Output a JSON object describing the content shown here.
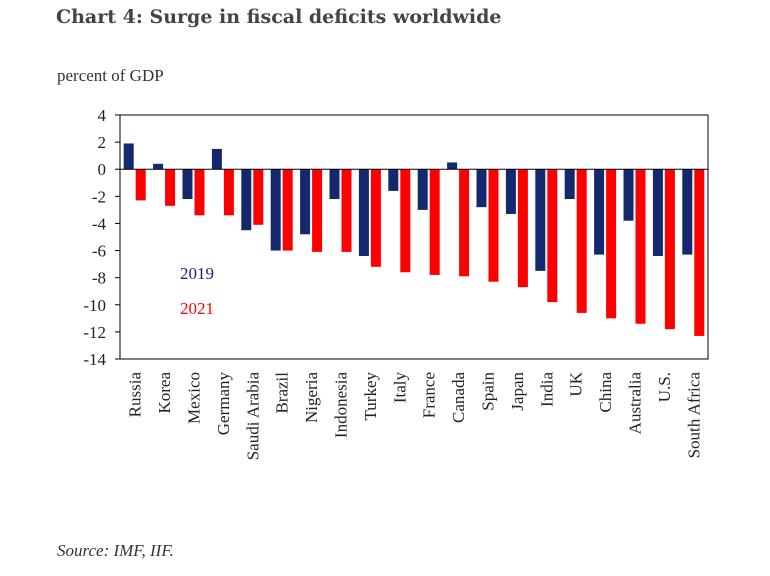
{
  "chart_title": "Chart 4:  Surge in fiscal deficits worldwide",
  "chart_data": {
    "type": "bar",
    "title": "Chart 4:  Surge in fiscal deficits worldwide",
    "ylabel": "percent of GDP",
    "ylim": [
      -14,
      4
    ],
    "yticks": [
      "4",
      "2",
      "0",
      "-2",
      "-4",
      "-6",
      "-8",
      "-10",
      "-12",
      "-14"
    ],
    "categories": [
      "Russia",
      "Korea",
      "Mexico",
      "Germany",
      "Saudi Arabia",
      "Brazil",
      "Nigeria",
      "Indonesia",
      "Turkey",
      "Italy",
      "France",
      "Canada",
      "Spain",
      "Japan",
      "India",
      "UK",
      "China",
      "Australia",
      "U.S.",
      "South Africa"
    ],
    "series": [
      {
        "name": "2019",
        "color": "#14286e",
        "values": [
          1.9,
          0.4,
          -2.2,
          1.5,
          -4.5,
          -6.0,
          -4.8,
          -2.2,
          -6.4,
          -1.6,
          -3.0,
          0.5,
          -2.8,
          -3.3,
          -7.5,
          -2.2,
          -6.3,
          -3.8,
          -6.4,
          -6.3
        ]
      },
      {
        "name": "2021",
        "color": "#ff0000",
        "values": [
          -2.3,
          -2.7,
          -3.4,
          -3.4,
          -4.1,
          -6.0,
          -6.1,
          -6.1,
          -7.2,
          -7.6,
          -7.8,
          -7.9,
          -8.3,
          -8.7,
          -9.8,
          -10.6,
          -11.0,
          -11.4,
          -11.8,
          -12.3
        ]
      }
    ],
    "grid": false,
    "legend": "inside-left"
  },
  "source": "Source: IMF, IIF."
}
